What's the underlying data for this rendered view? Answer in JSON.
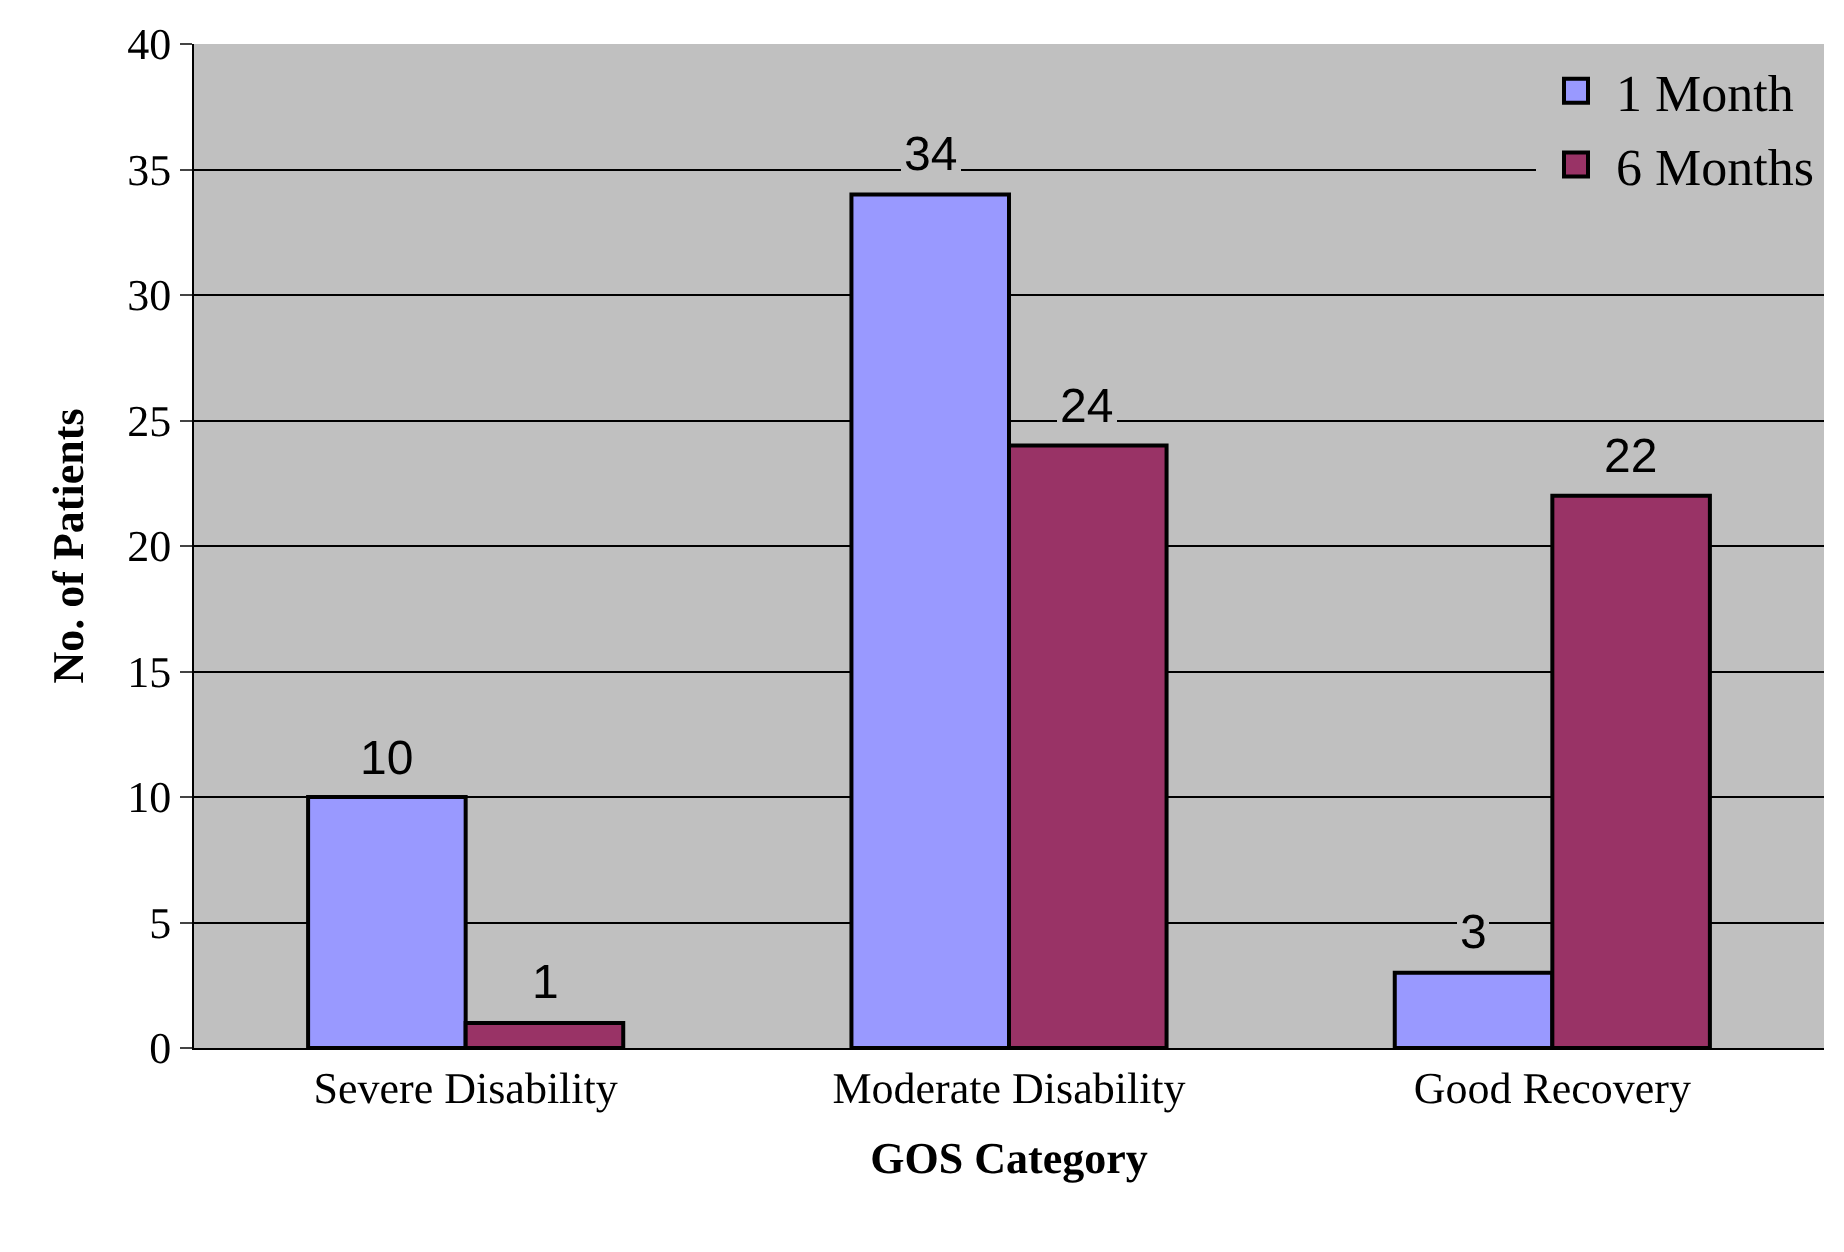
{
  "chart_data": {
    "type": "bar",
    "xlabel": "GOS Category",
    "ylabel": "No. of Patients",
    "categories": [
      "Severe Disability",
      "Moderate Disability",
      "Good Recovery"
    ],
    "series": [
      {
        "name": "1 Month",
        "color": "#9999ff",
        "values": [
          10,
          34,
          3
        ]
      },
      {
        "name": "6 Months",
        "color": "#993366",
        "values": [
          1,
          24,
          22
        ]
      }
    ],
    "ylim": [
      0,
      40
    ],
    "yticks": [
      0,
      5,
      10,
      15,
      20,
      25,
      30,
      35,
      40
    ],
    "grid": "y",
    "legend": "top right",
    "data_labels": true
  }
}
